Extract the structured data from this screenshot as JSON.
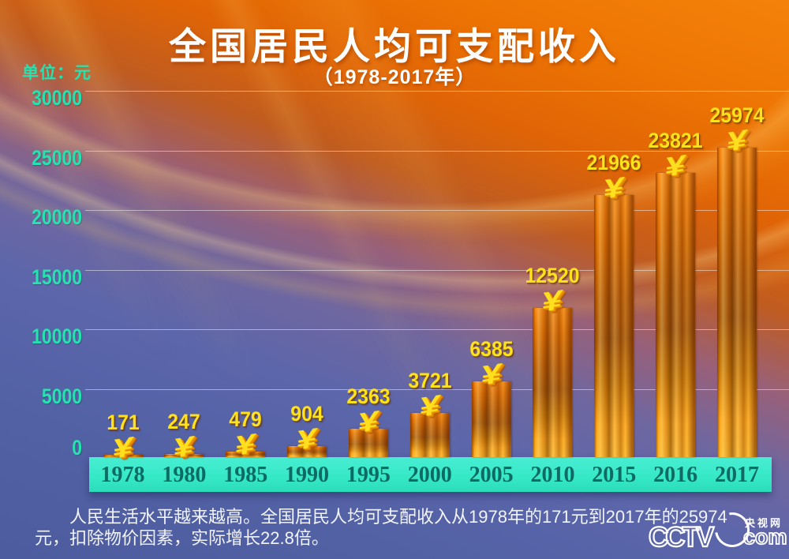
{
  "page": {
    "title": "全国居民人均可支配收入",
    "subtitle": "（1978-2017年）",
    "unit_label": "单位：元"
  },
  "chart_data": {
    "type": "bar",
    "title": "全国居民人均可支配收入",
    "subtitle": "（1978-2017年）",
    "ylabel": "单位：元",
    "categories": [
      "1978",
      "1980",
      "1985",
      "1990",
      "1995",
      "2000",
      "2005",
      "2010",
      "2015",
      "2016",
      "2017"
    ],
    "values": [
      171,
      247,
      479,
      904,
      2363,
      3721,
      6385,
      12520,
      21966,
      23821,
      25974
    ],
    "ylim": [
      0,
      30000
    ],
    "yticks": [
      0,
      5000,
      10000,
      15000,
      20000,
      25000,
      30000
    ],
    "grid": true,
    "legend": "none",
    "bar_cap_symbol": "¥",
    "colors": {
      "bar_body": "#e8820a",
      "bar_cap": "#ffdf1e",
      "value_label": "#ffe21c",
      "tick_label": "#27e1b0",
      "axis_band": "#35e8c6",
      "year_label": "#0d6a64",
      "gridline": "#ebebeb",
      "background_top": "#f4820a",
      "background_bottom": "#4c5c9e"
    }
  },
  "footer": {
    "text": "　　人民生活水平越来越高。全国居民人均可支配收入从1978年的171元到2017年的25974元，扣除物价因素，实际增长22.8倍。"
  },
  "logo": {
    "brand": "CCTV",
    "site_name": "央视网",
    "domain": "com"
  }
}
